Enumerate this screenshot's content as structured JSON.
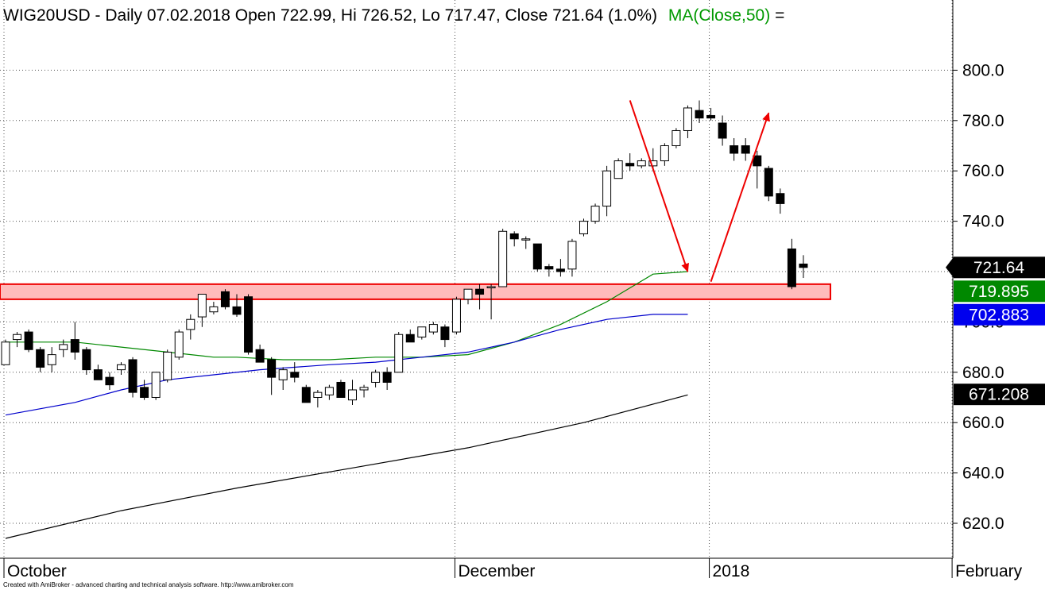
{
  "header": {
    "text": "WIG20USD - Daily 07.02.2018 Open 722.99, Hi 726.52, Lo 717.47, Close 721.64 (1.0%)",
    "ma_label": "MA(Close,50)",
    "ma_suffix": " =",
    "ma_color": "#009900"
  },
  "footer": "Created with AmiBroker - advanced charting and technical analysis software. http://www.amibroker.com",
  "price_badges": [
    {
      "value": "721.64",
      "bg": "#000000",
      "fg": "#ffffff",
      "y": 721.64
    },
    {
      "value": "719.895",
      "bg": "#008800",
      "fg": "#ffffff",
      "y": 719.895
    },
    {
      "value": "702.883",
      "bg": "#0000ee",
      "fg": "#ffffff",
      "y": 702.883
    },
    {
      "value": "671.208",
      "bg": "#000000",
      "fg": "#ffffff",
      "y": 671.208
    }
  ],
  "chart_data": {
    "type": "candlestick",
    "title": "WIG20USD - Daily 07.02.2018 Open 722.99, Hi 726.52, Lo 717.47, Close 721.64 (1.0%)",
    "ylim": [
      610,
      806
    ],
    "y_ticks": [
      "620.0",
      "640.0",
      "660.0",
      "680.0",
      "700.0",
      "720.0",
      "740.0",
      "760.0",
      "780.0",
      "800.0"
    ],
    "x_labels": [
      {
        "label": "October",
        "index": 0
      },
      {
        "label": "December",
        "index": 39
      },
      {
        "label": "2018",
        "index": 61
      },
      {
        "label": "February",
        "index": 82
      }
    ],
    "candles": [
      {
        "o": 683,
        "h": 693,
        "l": 683,
        "c": 692
      },
      {
        "o": 693,
        "h": 696,
        "l": 690,
        "c": 695
      },
      {
        "o": 696,
        "h": 697,
        "l": 688,
        "c": 689
      },
      {
        "o": 689,
        "h": 690,
        "l": 680,
        "c": 682
      },
      {
        "o": 683,
        "h": 690,
        "l": 680,
        "c": 687
      },
      {
        "o": 689,
        "h": 693,
        "l": 686,
        "c": 691
      },
      {
        "o": 693,
        "h": 700,
        "l": 685,
        "c": 688
      },
      {
        "o": 689,
        "h": 690,
        "l": 679,
        "c": 681
      },
      {
        "o": 681,
        "h": 683,
        "l": 677,
        "c": 677
      },
      {
        "o": 678,
        "h": 680,
        "l": 673,
        "c": 675
      },
      {
        "o": 681,
        "h": 684,
        "l": 679,
        "c": 683
      },
      {
        "o": 685,
        "h": 686,
        "l": 670,
        "c": 672
      },
      {
        "o": 674,
        "h": 677,
        "l": 669,
        "c": 670
      },
      {
        "o": 670,
        "h": 680,
        "l": 669,
        "c": 680
      },
      {
        "o": 677,
        "h": 689,
        "l": 676,
        "c": 688
      },
      {
        "o": 686,
        "h": 697,
        "l": 685,
        "c": 696
      },
      {
        "o": 697,
        "h": 703,
        "l": 693,
        "c": 701
      },
      {
        "o": 702,
        "h": 711,
        "l": 698,
        "c": 711
      },
      {
        "o": 704,
        "h": 708,
        "l": 703,
        "c": 706
      },
      {
        "o": 712,
        "h": 713,
        "l": 705,
        "c": 706
      },
      {
        "o": 706,
        "h": 711,
        "l": 702,
        "c": 703
      },
      {
        "o": 710,
        "h": 711,
        "l": 687,
        "c": 688
      },
      {
        "o": 689,
        "h": 691,
        "l": 684,
        "c": 684
      },
      {
        "o": 685,
        "h": 686,
        "l": 671,
        "c": 678
      },
      {
        "o": 677,
        "h": 682,
        "l": 673,
        "c": 681
      },
      {
        "o": 680,
        "h": 684,
        "l": 676,
        "c": 678
      },
      {
        "o": 674,
        "h": 675,
        "l": 668,
        "c": 668
      },
      {
        "o": 670,
        "h": 673,
        "l": 666,
        "c": 672
      },
      {
        "o": 671,
        "h": 675,
        "l": 669,
        "c": 674
      },
      {
        "o": 676,
        "h": 677,
        "l": 670,
        "c": 670
      },
      {
        "o": 669,
        "h": 677,
        "l": 667,
        "c": 673
      },
      {
        "o": 673,
        "h": 675,
        "l": 670,
        "c": 674
      },
      {
        "o": 676,
        "h": 681,
        "l": 674,
        "c": 680
      },
      {
        "o": 680,
        "h": 682,
        "l": 673,
        "c": 676
      },
      {
        "o": 680,
        "h": 696,
        "l": 680,
        "c": 695
      },
      {
        "o": 695,
        "h": 697,
        "l": 692,
        "c": 692
      },
      {
        "o": 694,
        "h": 698,
        "l": 693,
        "c": 698
      },
      {
        "o": 696,
        "h": 700,
        "l": 695,
        "c": 699
      },
      {
        "o": 698,
        "h": 699,
        "l": 690,
        "c": 693
      },
      {
        "o": 696,
        "h": 710,
        "l": 695,
        "c": 709
      },
      {
        "o": 709,
        "h": 713,
        "l": 707,
        "c": 713
      },
      {
        "o": 713,
        "h": 715,
        "l": 705,
        "c": 711
      },
      {
        "o": 714,
        "h": 715,
        "l": 701,
        "c": 714
      },
      {
        "o": 714,
        "h": 737,
        "l": 714,
        "c": 736
      },
      {
        "o": 735,
        "h": 736,
        "l": 730,
        "c": 733
      },
      {
        "o": 733,
        "h": 734,
        "l": 729,
        "c": 733
      },
      {
        "o": 731,
        "h": 731,
        "l": 720,
        "c": 721
      },
      {
        "o": 722,
        "h": 723,
        "l": 718,
        "c": 721
      },
      {
        "o": 721,
        "h": 725,
        "l": 718,
        "c": 720
      },
      {
        "o": 721,
        "h": 733,
        "l": 718,
        "c": 732
      },
      {
        "o": 735,
        "h": 741,
        "l": 734,
        "c": 740
      },
      {
        "o": 740,
        "h": 747,
        "l": 739,
        "c": 746
      },
      {
        "o": 746,
        "h": 762,
        "l": 742,
        "c": 760
      },
      {
        "o": 757,
        "h": 765,
        "l": 757,
        "c": 764
      },
      {
        "o": 763,
        "h": 767,
        "l": 760,
        "c": 762
      },
      {
        "o": 762,
        "h": 765,
        "l": 761,
        "c": 764
      },
      {
        "o": 762,
        "h": 769,
        "l": 760,
        "c": 764
      },
      {
        "o": 764,
        "h": 771,
        "l": 762,
        "c": 770
      },
      {
        "o": 770,
        "h": 777,
        "l": 769,
        "c": 776
      },
      {
        "o": 776,
        "h": 786,
        "l": 773,
        "c": 785
      },
      {
        "o": 784,
        "h": 788,
        "l": 779,
        "c": 781
      },
      {
        "o": 782,
        "h": 785,
        "l": 780,
        "c": 781
      },
      {
        "o": 779,
        "h": 782,
        "l": 770,
        "c": 773
      },
      {
        "o": 770,
        "h": 773,
        "l": 764,
        "c": 767
      },
      {
        "o": 770,
        "h": 773,
        "l": 764,
        "c": 767
      },
      {
        "o": 766,
        "h": 768,
        "l": 753,
        "c": 762
      },
      {
        "o": 761,
        "h": 762,
        "l": 748,
        "c": 750
      },
      {
        "o": 751,
        "h": 753,
        "l": 743,
        "c": 747
      },
      {
        "o": 729,
        "h": 733,
        "l": 713,
        "c": 714
      },
      {
        "o": 723,
        "h": 726.52,
        "l": 717.47,
        "c": 721.64
      }
    ],
    "series": [
      {
        "name": "MA(Close,50)",
        "color": "#008800",
        "points": [
          [
            0,
            692
          ],
          [
            6,
            692
          ],
          [
            10,
            690
          ],
          [
            14,
            688
          ],
          [
            18,
            686
          ],
          [
            20,
            686
          ],
          [
            24,
            685
          ],
          [
            28,
            685
          ],
          [
            32,
            686
          ],
          [
            36,
            686
          ],
          [
            40,
            687
          ],
          [
            44,
            692
          ],
          [
            48,
            699
          ],
          [
            52,
            708
          ],
          [
            56,
            719
          ],
          [
            59,
            720
          ]
        ]
      },
      {
        "name": "",
        "color": "#0000cc",
        "points": [
          [
            0,
            663
          ],
          [
            6,
            668
          ],
          [
            10,
            673
          ],
          [
            14,
            677
          ],
          [
            18,
            679
          ],
          [
            22,
            681
          ],
          [
            28,
            683
          ],
          [
            32,
            684
          ],
          [
            36,
            686
          ],
          [
            40,
            688
          ],
          [
            44,
            692
          ],
          [
            48,
            697
          ],
          [
            52,
            701
          ],
          [
            56,
            703
          ],
          [
            59,
            703
          ]
        ]
      },
      {
        "name": "",
        "color": "#000000",
        "points": [
          [
            0,
            614
          ],
          [
            10,
            625
          ],
          [
            20,
            634
          ],
          [
            30,
            642
          ],
          [
            40,
            650
          ],
          [
            50,
            660
          ],
          [
            59,
            671
          ]
        ]
      }
    ],
    "support_zone": {
      "y_low": 709,
      "y_high": 715,
      "fill": "#ffbbbb",
      "stroke": "#ee0000"
    },
    "arrows": [
      {
        "from": [
          54,
          788
        ],
        "to": [
          59,
          720
        ],
        "color": "#ee0000"
      },
      {
        "from": [
          61,
          716
        ],
        "to": [
          66,
          783
        ],
        "color": "#ee0000"
      }
    ]
  }
}
